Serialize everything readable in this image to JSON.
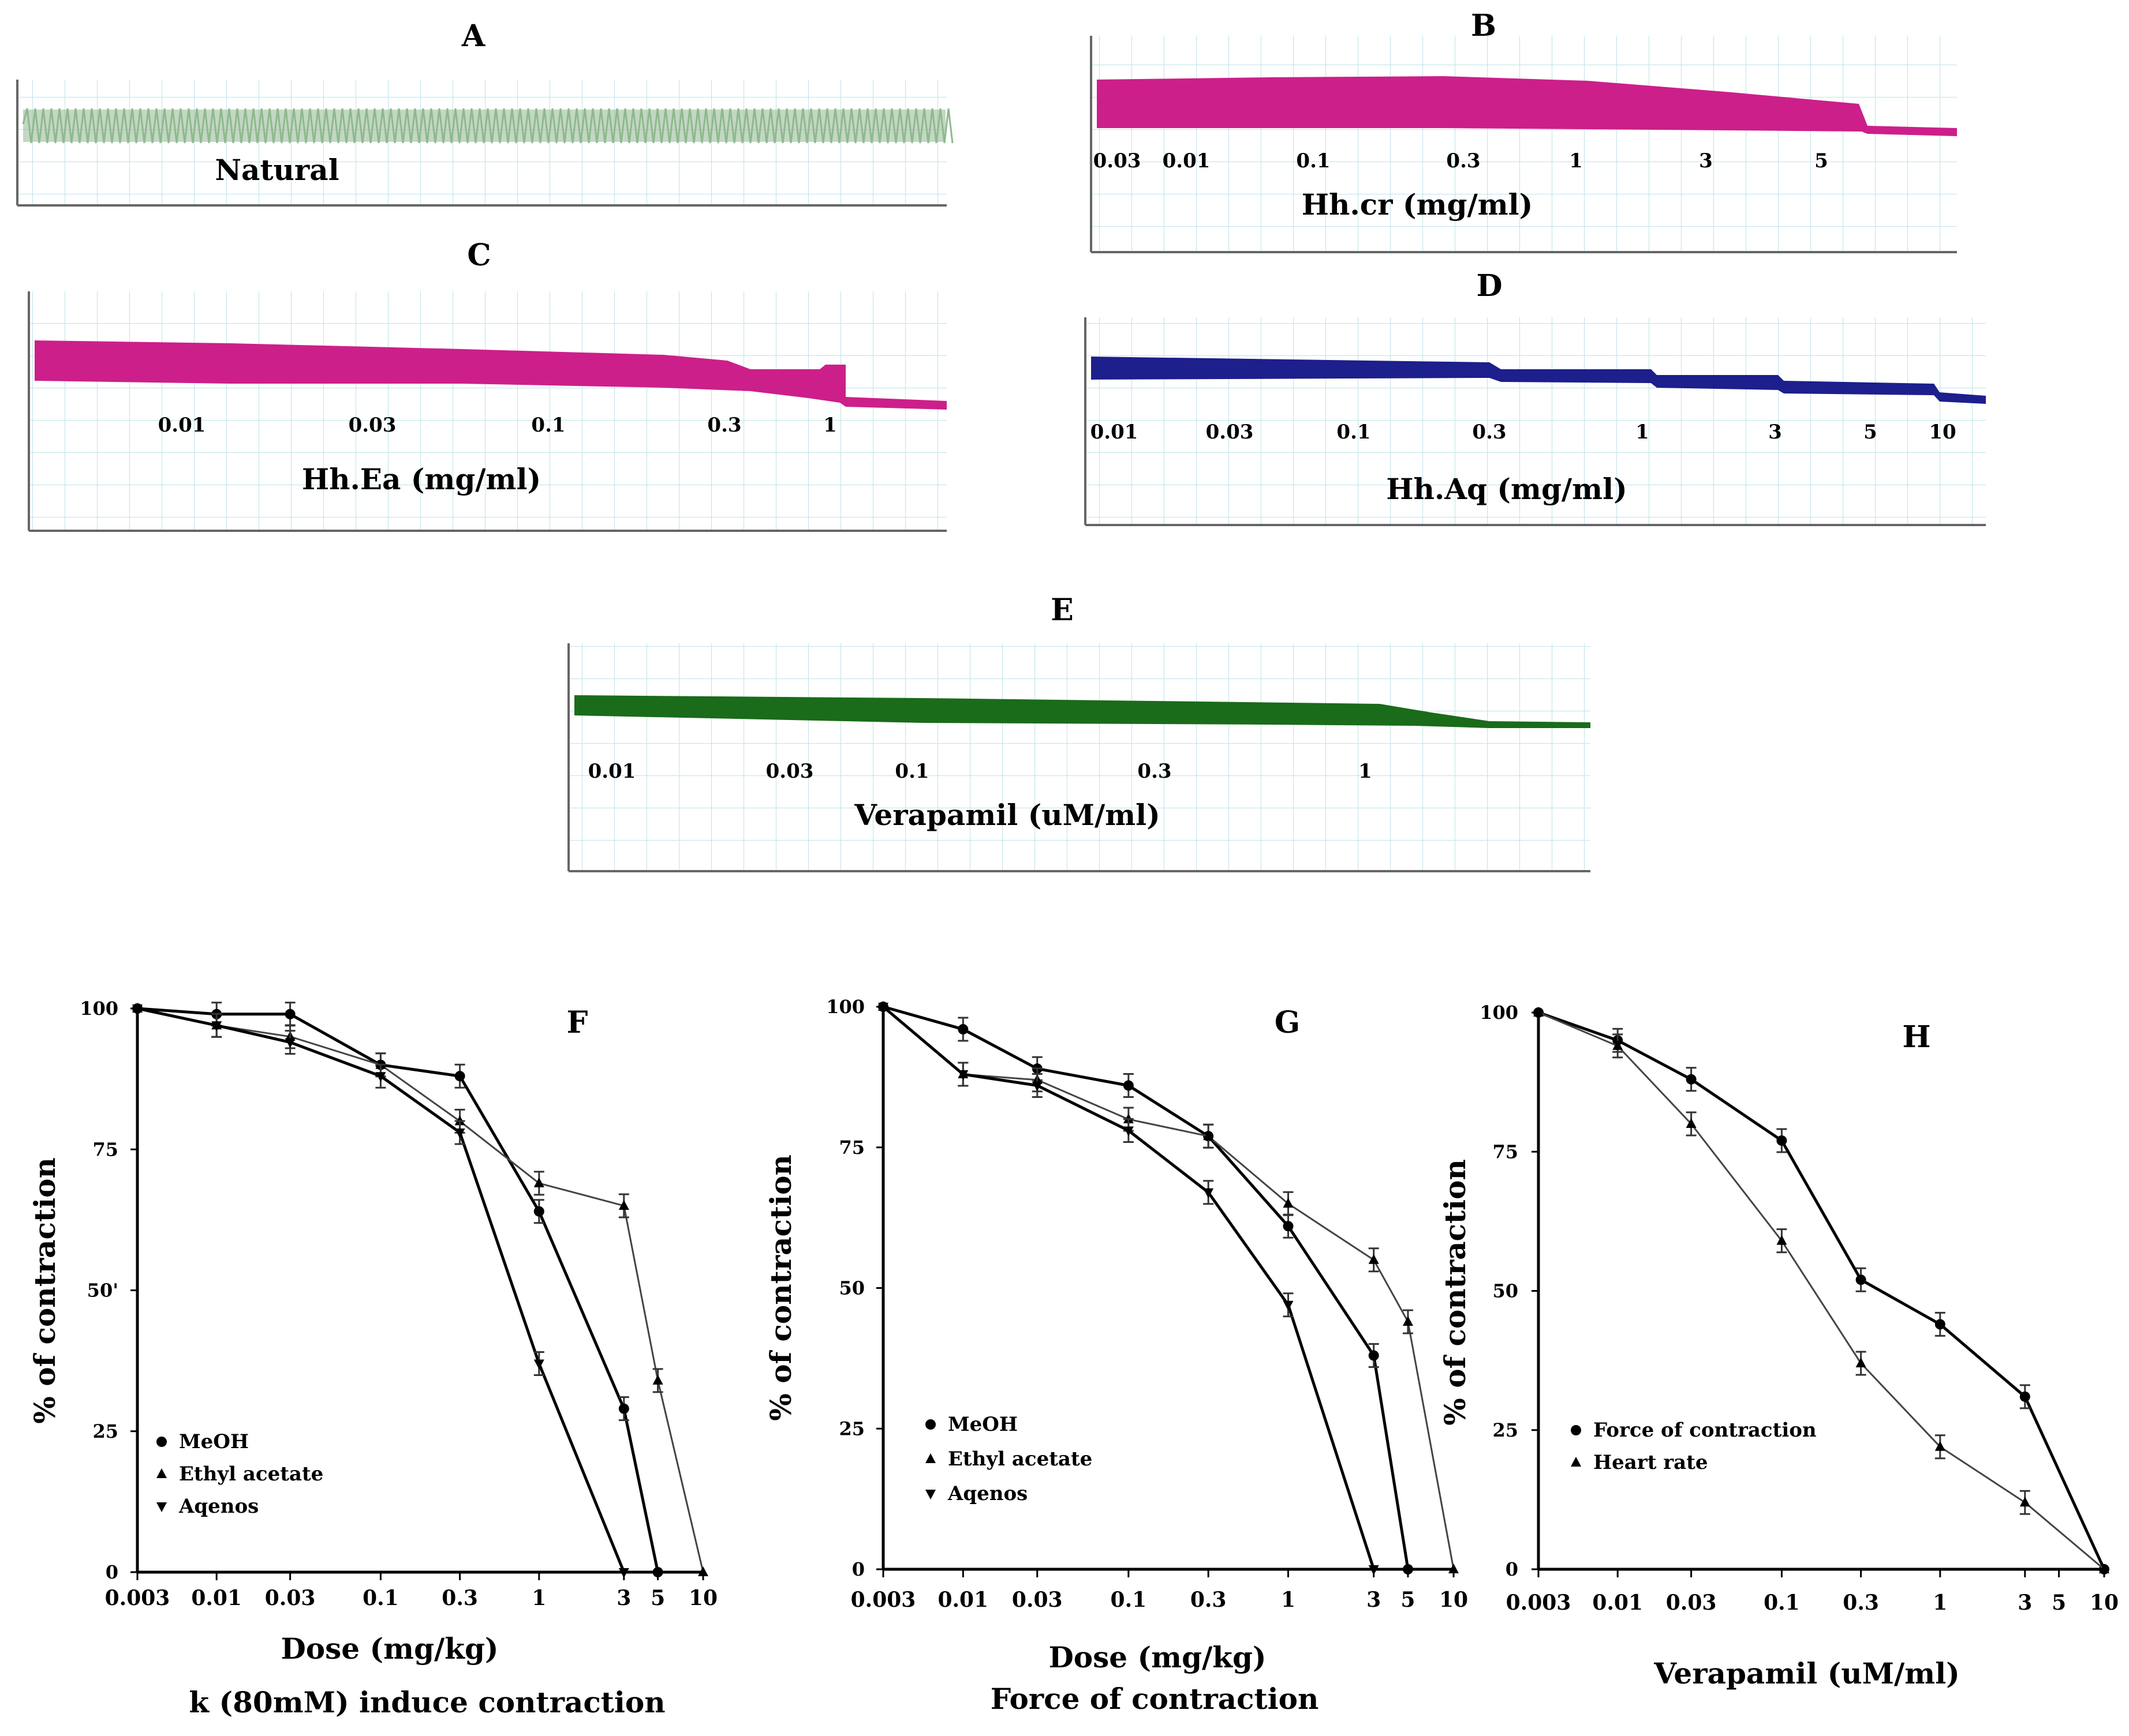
{
  "traces": {
    "A": {
      "panel": "A",
      "label": "Natural",
      "color": "#8fb88f"
    },
    "B": {
      "panel": "B",
      "label": "Hh.cr (mg/ml)",
      "color": "#cc1f8a",
      "ticks": [
        "0.03",
        "0.01",
        "0.1",
        "0.3",
        "1",
        "3",
        "5"
      ]
    },
    "C": {
      "panel": "C",
      "label": "Hh.Ea (mg/ml)",
      "color": "#cc1f8a",
      "ticks": [
        "0.01",
        "0.03",
        "0.1",
        "0.3",
        "1"
      ]
    },
    "D": {
      "panel": "D",
      "label": "Hh.Aq (mg/ml)",
      "color": "#1c1f8c",
      "ticks": [
        "0.01",
        "0.03",
        "0.1",
        "0.3",
        "1",
        "3",
        "5",
        "10"
      ]
    },
    "E": {
      "panel": "E",
      "label": "Verapamil (uM/ml)",
      "color": "#1a6b1a",
      "ticks": [
        "0.01",
        "0.03",
        "0.1",
        "0.3",
        "1"
      ]
    }
  },
  "chart_data": [
    {
      "type": "line",
      "panel": "F",
      "title": "k (80mM) induce contraction",
      "xlabel": "Dose (mg/kg)",
      "ylabel": "% of contraction",
      "x_ticks": [
        "0.003",
        "0.01",
        "0.03",
        "0.1",
        "0.3",
        "1",
        "3",
        "5",
        "10"
      ],
      "y_ticks": [
        "0",
        "25",
        "50",
        "75",
        "100"
      ],
      "y_tick_display": [
        "0",
        "25",
        "50'",
        "75",
        "100"
      ],
      "ylim": [
        0,
        100
      ],
      "legend": [
        "MeOH",
        "Ethyl acetate",
        "Aqenos"
      ],
      "series": [
        {
          "name": "MeOH",
          "x": [
            "0.003",
            "0.01",
            "0.03",
            "0.1",
            "0.3",
            "1",
            "3",
            "5"
          ],
          "values": [
            100,
            99,
            99,
            90,
            88,
            64,
            29,
            0
          ]
        },
        {
          "name": "Ethyl acetate",
          "x": [
            "0.003",
            "0.01",
            "0.03",
            "0.1",
            "0.3",
            "1",
            "3",
            "5",
            "10"
          ],
          "values": [
            100,
            97,
            95,
            90,
            80,
            69,
            65,
            34,
            0
          ]
        },
        {
          "name": "Aqenos",
          "x": [
            "0.003",
            "0.01",
            "0.03",
            "0.1",
            "0.3",
            "1",
            "3"
          ],
          "values": [
            100,
            97,
            94,
            88,
            78,
            37,
            0
          ]
        }
      ]
    },
    {
      "type": "line",
      "panel": "G",
      "title": "Force of contraction",
      "xlabel": "Dose (mg/kg)",
      "ylabel": "% of contraction",
      "x_ticks": [
        "0.003",
        "0.01",
        "0.03",
        "0.1",
        "0.3",
        "1",
        "3",
        "5",
        "10"
      ],
      "y_ticks": [
        "0",
        "25",
        "50",
        "75",
        "100"
      ],
      "ylim": [
        0,
        100
      ],
      "legend": [
        "MeOH",
        "Ethyl acetate",
        "Aqenos"
      ],
      "series": [
        {
          "name": "MeOH",
          "x": [
            "0.003",
            "0.01",
            "0.03",
            "0.1",
            "0.3",
            "1",
            "3",
            "5"
          ],
          "values": [
            100,
            96,
            89,
            86,
            77,
            61,
            38,
            0
          ]
        },
        {
          "name": "Ethyl acetate",
          "x": [
            "0.003",
            "0.01",
            "0.03",
            "0.1",
            "0.3",
            "1",
            "3",
            "5",
            "10"
          ],
          "values": [
            100,
            88,
            87,
            80,
            77,
            65,
            55,
            44,
            0
          ]
        },
        {
          "name": "Aqenos",
          "x": [
            "0.003",
            "0.01",
            "0.03",
            "0.1",
            "0.3",
            "1",
            "3"
          ],
          "values": [
            100,
            88,
            86,
            78,
            67,
            47,
            0
          ]
        }
      ]
    },
    {
      "type": "line",
      "panel": "H",
      "title": "",
      "xlabel": "Verapamil (uM/ml)",
      "ylabel": "% of contraction",
      "x_ticks": [
        "0.003",
        "0.01",
        "0.03",
        "0.1",
        "0.3",
        "1",
        "3",
        "5",
        "10"
      ],
      "y_ticks": [
        "0",
        "25",
        "50",
        "75",
        "100"
      ],
      "ylim": [
        0,
        100
      ],
      "legend": [
        "Force of contraction",
        "Heart rate"
      ],
      "series": [
        {
          "name": "Force of contraction",
          "x": [
            "0.003",
            "0.01",
            "0.03",
            "0.1",
            "0.3",
            "1",
            "3",
            "10"
          ],
          "values": [
            100,
            95,
            88,
            77,
            52,
            44,
            31,
            0
          ]
        },
        {
          "name": "Heart rate",
          "x": [
            "0.003",
            "0.01",
            "0.03",
            "0.1",
            "0.3",
            "1",
            "3",
            "10"
          ],
          "values": [
            100,
            94,
            80,
            59,
            37,
            22,
            12,
            0
          ]
        }
      ]
    }
  ]
}
